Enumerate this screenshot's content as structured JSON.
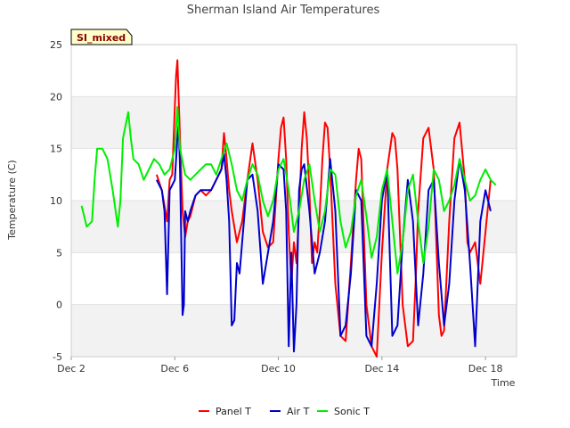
{
  "chart_data": {
    "type": "line",
    "title": "Sherman Island Air Temperatures",
    "xlabel": "Time",
    "ylabel": "Temperature (C)",
    "badge": "SI_mixed",
    "xlim": [
      2.0,
      19.2
    ],
    "ylim": [
      -5,
      25
    ],
    "x_ticks": [
      2,
      6,
      10,
      14,
      18
    ],
    "x_tick_labels": [
      "Dec 2",
      "Dec 6",
      "Dec 10",
      "Dec 14",
      "Dec 18"
    ],
    "y_ticks": [
      -5,
      0,
      5,
      10,
      15,
      20,
      25
    ],
    "y_tick_labels": [
      "-5",
      "0",
      "5",
      "10",
      "15",
      "20",
      "25"
    ],
    "grid": true,
    "legend_position": "bottom",
    "series": [
      {
        "name": "Panel T",
        "color": "#ff0000",
        "x": [
          5.3,
          5.5,
          5.7,
          5.8,
          5.9,
          6.0,
          6.05,
          6.1,
          6.2,
          6.3,
          6.4,
          6.5,
          6.6,
          6.8,
          7.0,
          7.2,
          7.4,
          7.6,
          7.8,
          7.9,
          8.0,
          8.1,
          8.2,
          8.4,
          8.6,
          8.8,
          9.0,
          9.2,
          9.4,
          9.6,
          9.8,
          10.0,
          10.1,
          10.2,
          10.3,
          10.4,
          10.5,
          10.6,
          10.7,
          10.8,
          10.9,
          11.0,
          11.1,
          11.2,
          11.3,
          11.4,
          11.5,
          11.6,
          11.7,
          11.8,
          11.9,
          12.0,
          12.2,
          12.4,
          12.6,
          12.8,
          13.0,
          13.1,
          13.2,
          13.4,
          13.6,
          13.8,
          14.0,
          14.2,
          14.4,
          14.5,
          14.6,
          14.8,
          15.0,
          15.2,
          15.3,
          15.4,
          15.6,
          15.8,
          16.0,
          16.2,
          16.3,
          16.4,
          16.6,
          16.8,
          17.0,
          17.2,
          17.3,
          17.4,
          17.6,
          17.8,
          18.0,
          18.2
        ],
        "values": [
          12.5,
          11.0,
          8.0,
          12.0,
          12.5,
          19.0,
          22.0,
          23.5,
          16.0,
          9.0,
          6.5,
          8.0,
          8.5,
          10.5,
          11.0,
          10.5,
          11.0,
          12.0,
          13.0,
          16.5,
          14.0,
          11.0,
          9.0,
          6.0,
          8.0,
          12.0,
          15.5,
          12.0,
          7.0,
          5.5,
          6.0,
          14.0,
          17.0,
          18.0,
          14.0,
          7.0,
          2.0,
          6.0,
          4.0,
          9.0,
          15.0,
          18.5,
          16.0,
          11.0,
          4.0,
          6.0,
          5.0,
          9.0,
          14.0,
          17.5,
          17.0,
          13.0,
          2.0,
          -3.0,
          -3.5,
          4.0,
          12.0,
          15.0,
          14.0,
          0.0,
          -4.0,
          -5.0,
          5.0,
          13.0,
          16.5,
          16.0,
          13.0,
          0.0,
          -4.0,
          -3.5,
          2.0,
          9.0,
          16.0,
          17.0,
          13.0,
          -1.0,
          -3.0,
          -2.5,
          8.0,
          16.0,
          17.5,
          12.0,
          6.0,
          5.0,
          6.0,
          2.0,
          7.0,
          12.0
        ]
      },
      {
        "name": "Air T",
        "color": "#0000cc",
        "x": [
          5.3,
          5.5,
          5.6,
          5.7,
          5.8,
          5.9,
          6.0,
          6.1,
          6.15,
          6.2,
          6.3,
          6.35,
          6.4,
          6.5,
          6.6,
          6.8,
          7.0,
          7.2,
          7.4,
          7.6,
          7.8,
          7.9,
          8.0,
          8.1,
          8.2,
          8.3,
          8.4,
          8.5,
          8.6,
          8.8,
          9.0,
          9.2,
          9.4,
          9.6,
          9.8,
          10.0,
          10.2,
          10.3,
          10.4,
          10.5,
          10.6,
          10.7,
          10.8,
          10.9,
          11.0,
          11.2,
          11.4,
          11.6,
          11.8,
          12.0,
          12.2,
          12.4,
          12.6,
          12.8,
          13.0,
          13.2,
          13.4,
          13.6,
          13.8,
          14.0,
          14.2,
          14.4,
          14.6,
          14.8,
          15.0,
          15.2,
          15.4,
          15.6,
          15.8,
          16.0,
          16.2,
          16.4,
          16.6,
          16.8,
          17.0,
          17.2,
          17.4,
          17.6,
          17.8,
          18.0,
          18.2
        ],
        "values": [
          12.0,
          11.0,
          9.0,
          1.0,
          11.0,
          11.5,
          12.0,
          16.0,
          17.5,
          13.0,
          -1.0,
          0.0,
          9.0,
          8.0,
          9.0,
          10.5,
          11.0,
          11.0,
          11.0,
          12.0,
          13.0,
          14.5,
          12.0,
          8.0,
          -2.0,
          -1.5,
          4.0,
          3.0,
          6.0,
          12.0,
          12.5,
          9.0,
          2.0,
          5.0,
          8.0,
          13.5,
          13.0,
          9.0,
          -4.0,
          5.0,
          -4.5,
          0.0,
          11.0,
          13.0,
          13.5,
          9.0,
          3.0,
          5.0,
          8.0,
          14.0,
          9.0,
          -3.0,
          -2.0,
          3.0,
          11.0,
          10.0,
          -3.0,
          -4.0,
          2.0,
          10.0,
          13.0,
          -3.0,
          -2.0,
          6.0,
          12.0,
          8.0,
          -2.0,
          3.0,
          11.0,
          12.0,
          4.0,
          -2.0,
          2.0,
          10.0,
          14.0,
          11.0,
          4.0,
          -4.0,
          8.0,
          11.0,
          9.0
        ]
      },
      {
        "name": "Sonic T",
        "color": "#00ee00",
        "x": [
          2.4,
          2.6,
          2.8,
          2.9,
          3.0,
          3.2,
          3.4,
          3.6,
          3.8,
          3.9,
          4.0,
          4.2,
          4.3,
          4.4,
          4.6,
          4.8,
          5.0,
          5.2,
          5.4,
          5.6,
          5.8,
          6.0,
          6.1,
          6.2,
          6.4,
          6.6,
          6.8,
          7.0,
          7.2,
          7.4,
          7.6,
          7.8,
          8.0,
          8.2,
          8.4,
          8.6,
          8.8,
          9.0,
          9.2,
          9.4,
          9.6,
          9.8,
          10.0,
          10.2,
          10.4,
          10.6,
          10.8,
          11.0,
          11.2,
          11.4,
          11.6,
          11.8,
          12.0,
          12.2,
          12.4,
          12.6,
          12.8,
          13.0,
          13.2,
          13.4,
          13.6,
          13.8,
          14.0,
          14.2,
          14.4,
          14.6,
          14.8,
          15.0,
          15.2,
          15.4,
          15.6,
          15.8,
          16.0,
          16.2,
          16.4,
          16.6,
          16.8,
          17.0,
          17.2,
          17.4,
          17.6,
          17.8,
          18.0,
          18.2,
          18.4
        ],
        "values": [
          9.5,
          7.5,
          8.0,
          12.0,
          15.0,
          15.0,
          14.0,
          11.0,
          7.5,
          10.0,
          16.0,
          18.5,
          16.0,
          14.0,
          13.5,
          12.0,
          13.0,
          14.0,
          13.5,
          12.5,
          13.0,
          15.0,
          19.0,
          15.0,
          12.5,
          12.0,
          12.5,
          13.0,
          13.5,
          13.5,
          12.5,
          14.0,
          15.5,
          13.5,
          11.0,
          10.0,
          12.0,
          13.5,
          12.5,
          10.0,
          8.5,
          10.0,
          13.0,
          14.0,
          11.0,
          7.0,
          9.0,
          12.0,
          13.5,
          10.0,
          7.0,
          9.0,
          13.0,
          12.5,
          8.0,
          5.5,
          7.0,
          10.5,
          12.0,
          8.5,
          4.5,
          6.5,
          11.0,
          13.0,
          8.0,
          3.0,
          6.0,
          11.0,
          12.5,
          8.0,
          4.0,
          7.5,
          13.0,
          12.0,
          9.0,
          10.0,
          11.5,
          14.0,
          12.0,
          10.0,
          10.5,
          12.0,
          13.0,
          12.0,
          11.5
        ]
      }
    ]
  }
}
